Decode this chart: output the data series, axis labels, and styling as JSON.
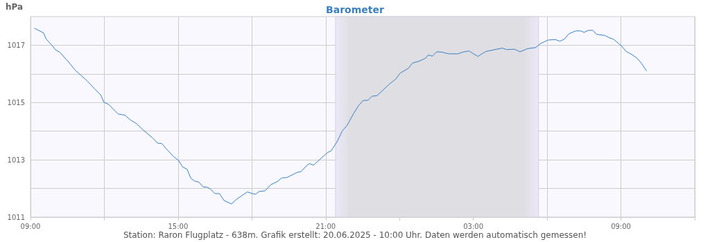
{
  "chart_data": {
    "type": "line",
    "title": "Barometer",
    "ylabel": "hPa",
    "annotations": [
      "Station: Raron Flugplatz - 638m. Grafik erstellt: 20.06.2025 - 10:00 Uhr. Daten werden automatisch gemessen!"
    ],
    "x": [
      "2025-06-19T09:10",
      "2025-06-19T09:32",
      "2025-06-19T09:38",
      "2025-06-19T09:52",
      "2025-06-19T10:01",
      "2025-06-19T10:11",
      "2025-06-19T10:32",
      "2025-06-19T10:49",
      "2025-06-19T11:03",
      "2025-06-19T11:17",
      "2025-06-19T11:37",
      "2025-06-19T11:51",
      "2025-06-19T11:59",
      "2025-06-19T12:11",
      "2025-06-19T12:28",
      "2025-06-19T12:34",
      "2025-06-19T12:50",
      "2025-06-19T13:04",
      "2025-06-19T13:19",
      "2025-06-19T13:35",
      "2025-06-19T13:58",
      "2025-06-19T14:10",
      "2025-06-19T14:20",
      "2025-06-19T14:32",
      "2025-06-19T14:49",
      "2025-06-19T15:01",
      "2025-06-19T15:11",
      "2025-06-19T15:22",
      "2025-06-19T15:31",
      "2025-06-19T15:40",
      "2025-06-19T15:51",
      "2025-06-19T16:01",
      "2025-06-19T16:10",
      "2025-06-19T16:19",
      "2025-06-19T16:30",
      "2025-06-19T16:41",
      "2025-06-19T16:52",
      "2025-06-19T17:10",
      "2025-06-19T17:24",
      "2025-06-19T17:49",
      "2025-06-19T18:01",
      "2025-06-19T18:09",
      "2025-06-19T18:17",
      "2025-06-19T18:32",
      "2025-06-19T18:46",
      "2025-06-19T19:02",
      "2025-06-19T19:13",
      "2025-06-19T19:25",
      "2025-06-19T19:50",
      "2025-06-19T20:00",
      "2025-06-19T20:13",
      "2025-06-19T20:20",
      "2025-06-19T20:30",
      "2025-06-19T20:47",
      "2025-06-19T21:04",
      "2025-06-19T21:13",
      "2025-06-19T21:28",
      "2025-06-19T21:40",
      "2025-06-19T21:52",
      "2025-06-19T22:09",
      "2025-06-19T22:20",
      "2025-06-19T22:31",
      "2025-06-19T22:43",
      "2025-06-19T22:53",
      "2025-06-19T23:05",
      "2025-06-19T23:15",
      "2025-06-19T23:34",
      "2025-06-19T23:50",
      "2025-06-20T00:02",
      "2025-06-20T00:21",
      "2025-06-20T00:32",
      "2025-06-20T00:47",
      "2025-06-20T01:04",
      "2025-06-20T01:10",
      "2025-06-20T01:20",
      "2025-06-20T01:31",
      "2025-06-20T01:43",
      "2025-06-20T02:00",
      "2025-06-20T02:23",
      "2025-06-20T02:34",
      "2025-06-20T02:50",
      "2025-06-20T02:56",
      "2025-06-20T03:11",
      "2025-06-20T03:30",
      "2025-06-20T03:53",
      "2025-06-20T04:11",
      "2025-06-20T04:21",
      "2025-06-20T04:41",
      "2025-06-20T04:54",
      "2025-06-20T05:12",
      "2025-06-20T05:32",
      "2025-06-20T05:43",
      "2025-06-20T06:02",
      "2025-06-20T06:20",
      "2025-06-20T06:31",
      "2025-06-20T06:42",
      "2025-06-20T06:53",
      "2025-06-20T07:10",
      "2025-06-20T07:22",
      "2025-06-20T07:30",
      "2025-06-20T07:41",
      "2025-06-20T07:51",
      "2025-06-20T08:01",
      "2025-06-20T08:21",
      "2025-06-20T08:32",
      "2025-06-20T08:42",
      "2025-06-20T09:01",
      "2025-06-20T09:13",
      "2025-06-20T09:26",
      "2025-06-20T09:40",
      "2025-06-20T09:51",
      "2025-06-20T10:02"
    ],
    "series": [
      {
        "color": "#3a7fc1",
        "values": [
          1017.59,
          1017.43,
          1017.22,
          1017.0,
          1016.84,
          1016.76,
          1016.43,
          1016.13,
          1015.95,
          1015.77,
          1015.47,
          1015.27,
          1015.01,
          1014.93,
          1014.68,
          1014.6,
          1014.56,
          1014.39,
          1014.26,
          1014.04,
          1013.76,
          1013.58,
          1013.57,
          1013.37,
          1013.11,
          1012.98,
          1012.75,
          1012.67,
          1012.36,
          1012.26,
          1012.22,
          1012.05,
          1012.05,
          1011.98,
          1011.82,
          1011.82,
          1011.58,
          1011.46,
          1011.64,
          1011.88,
          1011.82,
          1011.8,
          1011.89,
          1011.92,
          1012.13,
          1012.24,
          1012.37,
          1012.38,
          1012.56,
          1012.59,
          1012.79,
          1012.87,
          1012.81,
          1013.03,
          1013.25,
          1013.31,
          1013.64,
          1014.0,
          1014.2,
          1014.64,
          1014.89,
          1015.07,
          1015.08,
          1015.22,
          1015.24,
          1015.37,
          1015.63,
          1015.81,
          1016.03,
          1016.19,
          1016.38,
          1016.44,
          1016.55,
          1016.66,
          1016.62,
          1016.77,
          1016.76,
          1016.7,
          1016.7,
          1016.76,
          1016.8,
          1016.74,
          1016.61,
          1016.78,
          1016.85,
          1016.9,
          1016.85,
          1016.86,
          1016.77,
          1016.88,
          1016.92,
          1017.05,
          1017.18,
          1017.2,
          1017.14,
          1017.21,
          1017.4,
          1017.5,
          1017.5,
          1017.45,
          1017.52,
          1017.52,
          1017.38,
          1017.34,
          1017.26,
          1017.21,
          1016.98,
          1016.78,
          1016.68,
          1016.54,
          1016.35,
          1016.11
        ]
      }
    ],
    "xlim": [
      "2025-06-19T09:00",
      "2025-06-20T12:00"
    ],
    "xticks": [
      {
        "value": "2025-06-19T09:00",
        "label": "09:00"
      },
      {
        "value": "2025-06-19T12:00",
        "label": null
      },
      {
        "value": "2025-06-19T15:00",
        "label": "15:00"
      },
      {
        "value": "2025-06-19T18:00",
        "label": null
      },
      {
        "value": "2025-06-19T21:00",
        "label": "21:00"
      },
      {
        "value": "2025-06-20T00:00",
        "label": null
      },
      {
        "value": "2025-06-20T03:00",
        "label": "03:00"
      },
      {
        "value": "2025-06-20T06:00",
        "label": null
      },
      {
        "value": "2025-06-20T09:00",
        "label": "09:00"
      },
      {
        "value": "2025-06-20T12:00",
        "label": null
      }
    ],
    "ylim": [
      1011,
      1018
    ],
    "yticks": [
      1011,
      {
        "value": 1012,
        "label": null
      },
      1013,
      {
        "value": 1014,
        "label": null
      },
      1015,
      {
        "value": 1016,
        "label": null
      },
      1017
    ],
    "bands": [
      {
        "axis": "x",
        "from": "2025-06-19T21:24",
        "to": "2025-06-20T05:39",
        "color": "#dfdfe3"
      }
    ],
    "grid": true,
    "marker": "none",
    "line_style": "solid"
  }
}
